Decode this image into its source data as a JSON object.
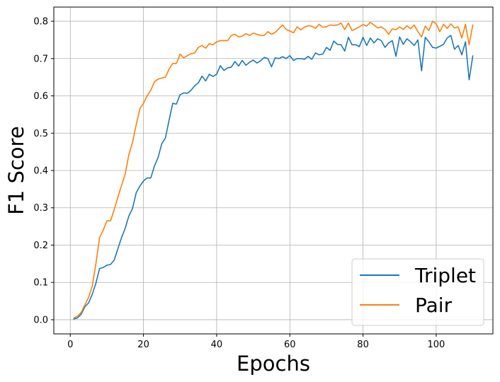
{
  "chart_data": {
    "type": "line",
    "title": "",
    "xlabel": "Epochs",
    "ylabel": "F1 Score",
    "xlim": [
      -4.5,
      115.5
    ],
    "ylim": [
      -0.038,
      0.838
    ],
    "xticks": [
      0,
      20,
      40,
      60,
      80,
      100
    ],
    "yticks": [
      0.0,
      0.1,
      0.2,
      0.3,
      0.4,
      0.5,
      0.6,
      0.7,
      0.8
    ],
    "ytick_labels": [
      "0.0",
      "0.1",
      "0.2",
      "0.3",
      "0.4",
      "0.5",
      "0.6",
      "0.7",
      "0.8"
    ],
    "grid": true,
    "legend_position": "lower-right",
    "x": [
      1,
      2,
      3,
      4,
      5,
      6,
      7,
      8,
      9,
      10,
      11,
      12,
      13,
      14,
      15,
      16,
      17,
      18,
      19,
      20,
      21,
      22,
      23,
      24,
      25,
      26,
      27,
      28,
      29,
      30,
      31,
      32,
      33,
      34,
      35,
      36,
      37,
      38,
      39,
      40,
      41,
      42,
      43,
      44,
      45,
      46,
      47,
      48,
      49,
      50,
      51,
      52,
      53,
      54,
      55,
      56,
      57,
      58,
      59,
      60,
      61,
      62,
      63,
      64,
      65,
      66,
      67,
      68,
      69,
      70,
      71,
      72,
      73,
      74,
      75,
      76,
      77,
      78,
      79,
      80,
      81,
      82,
      83,
      84,
      85,
      86,
      87,
      88,
      89,
      90,
      91,
      92,
      93,
      94,
      95,
      96,
      97,
      98,
      99,
      100,
      101,
      102,
      103,
      104,
      105,
      106,
      107,
      108,
      109,
      110
    ],
    "series": [
      {
        "name": "Triplet",
        "color": "#1f77b4",
        "values": [
          0.002,
          0.005,
          0.015,
          0.035,
          0.045,
          0.068,
          0.098,
          0.137,
          0.14,
          0.146,
          0.148,
          0.16,
          0.19,
          0.22,
          0.245,
          0.278,
          0.298,
          0.34,
          0.358,
          0.372,
          0.38,
          0.38,
          0.412,
          0.435,
          0.472,
          0.487,
          0.535,
          0.58,
          0.578,
          0.603,
          0.608,
          0.607,
          0.615,
          0.627,
          0.635,
          0.653,
          0.64,
          0.658,
          0.652,
          0.658,
          0.681,
          0.668,
          0.675,
          0.677,
          0.692,
          0.68,
          0.695,
          0.682,
          0.69,
          0.696,
          0.688,
          0.694,
          0.703,
          0.7,
          0.678,
          0.702,
          0.7,
          0.705,
          0.7,
          0.708,
          0.695,
          0.7,
          0.7,
          0.698,
          0.706,
          0.698,
          0.715,
          0.71,
          0.712,
          0.73,
          0.722,
          0.747,
          0.738,
          0.737,
          0.72,
          0.757,
          0.737,
          0.737,
          0.732,
          0.757,
          0.735,
          0.755,
          0.742,
          0.753,
          0.748,
          0.73,
          0.742,
          0.748,
          0.706,
          0.758,
          0.738,
          0.753,
          0.745,
          0.735,
          0.75,
          0.667,
          0.757,
          0.745,
          0.73,
          0.728,
          0.733,
          0.738,
          0.755,
          0.762,
          0.725,
          0.735,
          0.71,
          0.745,
          0.643,
          0.707
        ]
      },
      {
        "name": "Pair",
        "color": "#ff7f0e",
        "values": [
          0.005,
          0.01,
          0.02,
          0.04,
          0.06,
          0.09,
          0.15,
          0.22,
          0.24,
          0.265,
          0.265,
          0.295,
          0.328,
          0.36,
          0.39,
          0.442,
          0.475,
          0.522,
          0.565,
          0.58,
          0.6,
          0.615,
          0.638,
          0.645,
          0.648,
          0.65,
          0.672,
          0.687,
          0.687,
          0.712,
          0.702,
          0.708,
          0.713,
          0.715,
          0.73,
          0.735,
          0.728,
          0.74,
          0.737,
          0.745,
          0.748,
          0.748,
          0.748,
          0.762,
          0.765,
          0.758,
          0.76,
          0.767,
          0.762,
          0.768,
          0.765,
          0.762,
          0.762,
          0.772,
          0.765,
          0.77,
          0.78,
          0.79,
          0.778,
          0.774,
          0.769,
          0.785,
          0.777,
          0.784,
          0.788,
          0.787,
          0.781,
          0.792,
          0.784,
          0.785,
          0.79,
          0.789,
          0.79,
          0.795,
          0.778,
          0.795,
          0.775,
          0.78,
          0.785,
          0.791,
          0.787,
          0.797,
          0.79,
          0.782,
          0.785,
          0.778,
          0.765,
          0.78,
          0.777,
          0.785,
          0.778,
          0.788,
          0.78,
          0.79,
          0.772,
          0.758,
          0.787,
          0.775,
          0.8,
          0.793,
          0.772,
          0.792,
          0.781,
          0.793,
          0.782,
          0.785,
          0.755,
          0.792,
          0.737,
          0.79
        ]
      }
    ]
  }
}
